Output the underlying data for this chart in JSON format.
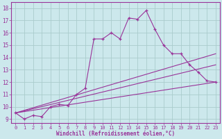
{
  "bg_color": "#cce8ec",
  "grid_color": "#aacccc",
  "line_color": "#993399",
  "title": "Windchill (Refroidissement éolien,°C)",
  "ylabel_ticks": [
    9,
    10,
    11,
    12,
    13,
    14,
    15,
    16,
    17,
    18
  ],
  "xlabel_ticks": [
    0,
    1,
    2,
    3,
    4,
    5,
    6,
    7,
    8,
    9,
    10,
    11,
    12,
    13,
    14,
    15,
    16,
    17,
    18,
    19,
    20,
    21,
    22,
    23
  ],
  "xlim": [
    -0.5,
    23.5
  ],
  "ylim": [
    8.7,
    18.5
  ],
  "curve_x": [
    0,
    1,
    2,
    3,
    4,
    5,
    6,
    7,
    8,
    9,
    10,
    11,
    12,
    13,
    14,
    15,
    16,
    17,
    18,
    19,
    20,
    21,
    22,
    23
  ],
  "curve_y": [
    9.5,
    9.0,
    9.3,
    9.2,
    10.0,
    10.2,
    10.1,
    11.0,
    11.5,
    15.5,
    15.5,
    16.0,
    15.5,
    17.2,
    17.1,
    17.8,
    16.3,
    15.0,
    14.3,
    14.3,
    13.4,
    12.8,
    12.1,
    12.0
  ],
  "line_a_end": 14.3,
  "line_b_end": 13.4,
  "line_c_end": 12.0,
  "line_start_y": 9.5,
  "line_start_x": 0,
  "line_end_x": 23
}
